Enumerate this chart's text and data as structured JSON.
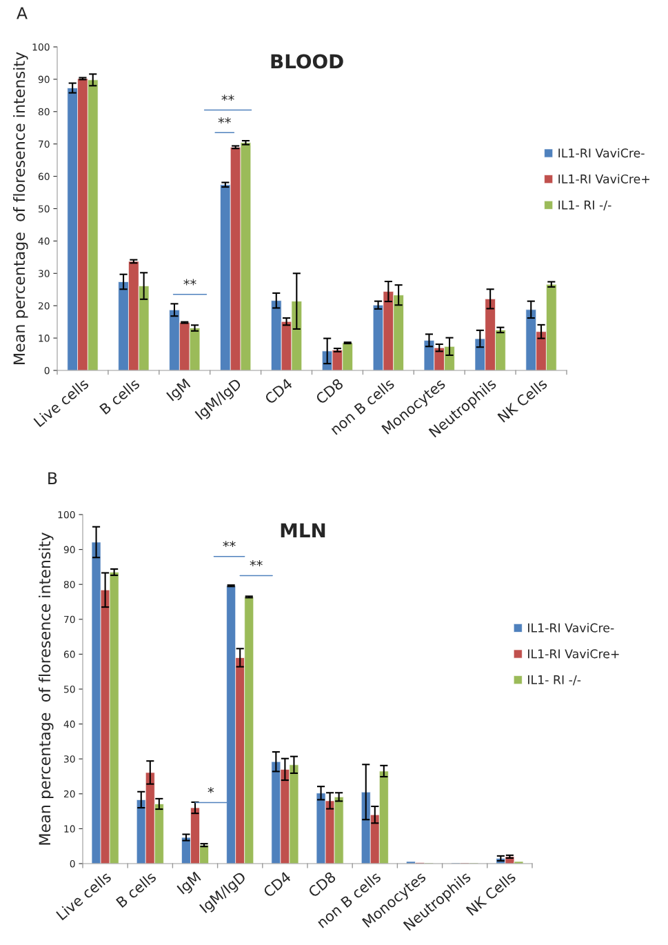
{
  "chart_data": [
    {
      "type": "bar",
      "title": "BLOOD",
      "ylabel": "Mean percentage  of floresence intensity",
      "categories": [
        "Live cells",
        "B cells",
        "IgM",
        "IgM/IgD",
        "CD4",
        "CD8",
        "non B cells",
        "Monocytes",
        "Neutrophils",
        "NK Cells"
      ],
      "series": [
        {
          "name": "IL1-RI VaviCre-",
          "color": "#4f81bd",
          "values": [
            87.3,
            27.4,
            18.7,
            57.4,
            21.6,
            6.0,
            20.2,
            9.3,
            9.8,
            18.8
          ],
          "errors": [
            1.5,
            2.3,
            1.9,
            0.7,
            2.3,
            3.9,
            1.2,
            1.9,
            2.6,
            2.6
          ]
        },
        {
          "name": "IL1-RI VaviCre+",
          "color": "#c0504d",
          "values": [
            90.2,
            33.7,
            14.8,
            69.0,
            15.1,
            6.3,
            24.4,
            7.0,
            22.1,
            12.0
          ],
          "errors": [
            0.3,
            0.5,
            0.2,
            0.4,
            1.1,
            0.5,
            3.1,
            1.1,
            3.0,
            2.1
          ]
        },
        {
          "name": "IL1- RI -/-",
          "color": "#9bbb59",
          "values": [
            89.8,
            26.1,
            13.1,
            70.4,
            21.4,
            8.5,
            23.3,
            7.4,
            12.5,
            26.6
          ],
          "errors": [
            1.8,
            4.1,
            0.9,
            0.6,
            8.6,
            0.2,
            3.1,
            2.7,
            0.8,
            0.8
          ]
        }
      ],
      "ylim": [
        0,
        100
      ],
      "yticks": [
        0,
        10,
        20,
        30,
        40,
        50,
        60,
        70,
        80,
        90,
        100
      ],
      "grid": false,
      "legend": "right",
      "annotations": [
        "A",
        "**",
        "**",
        "**"
      ]
    },
    {
      "type": "bar",
      "title": "MLN",
      "ylabel": "Mean percentage  of floresence intensity",
      "categories": [
        "Live cells",
        "B cells",
        "IgM",
        "IgM/IgD",
        "CD4",
        "CD8",
        "non B cells",
        "Monocytes",
        "Neutrophils",
        "NK Cells"
      ],
      "series": [
        {
          "name": "IL1-RI VaviCre-",
          "color": "#4f81bd",
          "values": [
            92.1,
            18.3,
            7.5,
            79.6,
            29.2,
            20.2,
            20.5,
            0.6,
            0.2,
            1.5
          ],
          "errors": [
            4.4,
            2.3,
            0.9,
            0.2,
            2.8,
            1.9,
            7.9,
            null,
            null,
            0.7
          ]
        },
        {
          "name": "IL1-RI VaviCre+",
          "color": "#c0504d",
          "values": [
            78.4,
            26.1,
            16.0,
            59.0,
            27.0,
            18.0,
            14.0,
            0.3,
            0.2,
            2.0
          ],
          "errors": [
            4.9,
            3.3,
            1.6,
            2.6,
            3.1,
            2.3,
            2.4,
            null,
            null,
            0.4
          ]
        },
        {
          "name": "IL1- RI -/-",
          "color": "#9bbb59",
          "values": [
            83.5,
            17.1,
            5.3,
            76.4,
            28.3,
            19.1,
            26.5,
            0.2,
            0.2,
            0.6
          ],
          "errors": [
            0.9,
            1.5,
            0.4,
            0.2,
            2.4,
            1.2,
            1.6,
            null,
            null,
            null
          ]
        }
      ],
      "ylim": [
        0,
        100
      ],
      "yticks": [
        0,
        10,
        20,
        30,
        40,
        50,
        60,
        70,
        80,
        90,
        100
      ],
      "grid": false,
      "legend": "right",
      "annotations": [
        "B",
        "*",
        "**",
        "**"
      ]
    }
  ]
}
